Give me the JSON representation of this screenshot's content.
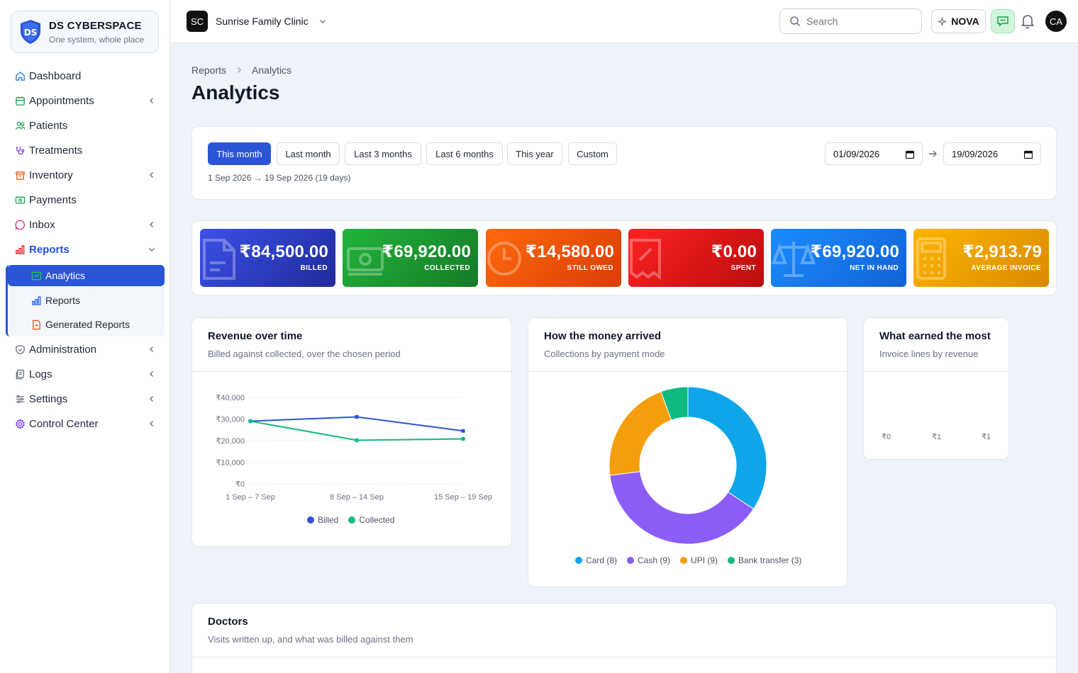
{
  "brand": {
    "name": "DS CYBERSPACE",
    "tagline": "One system, whole place"
  },
  "nav": {
    "items": [
      {
        "label": "Dashboard",
        "icon": "home-icon"
      },
      {
        "label": "Appointments",
        "icon": "calendar-icon"
      },
      {
        "label": "Patients",
        "icon": "users-icon"
      },
      {
        "label": "Treatments",
        "icon": "stethoscope-icon"
      },
      {
        "label": "Inventory",
        "icon": "box-icon"
      },
      {
        "label": "Payments",
        "icon": "money-icon"
      },
      {
        "label": "Inbox",
        "icon": "whatsapp-icon"
      },
      {
        "label": "Reports",
        "icon": "bar-chart-icon"
      },
      {
        "label": "Administration",
        "icon": "shield-icon"
      },
      {
        "label": "Logs",
        "icon": "document-stack-icon"
      },
      {
        "label": "Settings",
        "icon": "sliders-icon"
      },
      {
        "label": "Control Center",
        "icon": "gear-icon"
      }
    ],
    "reports_sub": [
      {
        "label": "Analytics",
        "icon": "analytics-icon"
      },
      {
        "label": "Reports",
        "icon": "bar-chart-icon"
      },
      {
        "label": "Generated Reports",
        "icon": "file-icon"
      }
    ]
  },
  "topbar": {
    "clinic_initials": "SC",
    "clinic_name": "Sunrise Family Clinic",
    "search_placeholder": "Search",
    "nova_label": "NOVA",
    "user_initials": "CA"
  },
  "breadcrumb": {
    "parent": "Reports",
    "current": "Analytics"
  },
  "page": {
    "title": "Analytics"
  },
  "filters": {
    "pills": [
      "This month",
      "Last month",
      "Last 3 months",
      "Last 6 months",
      "This year",
      "Custom"
    ],
    "selected": "This month",
    "range_text": "1 Sep 2026 → 19 Sep 2026 (19 days)",
    "from_date": "01/09/2026",
    "to_date": "19/09/2026"
  },
  "kpis": [
    {
      "value": "₹84,500.00",
      "label": "BILLED",
      "color_from": "#3c51e8",
      "color_to": "#1e2a9a",
      "icon": "document-icon"
    },
    {
      "value": "₹69,920.00",
      "label": "COLLECTED",
      "color_from": "#22b53c",
      "color_to": "#157a26",
      "icon": "cash-icon"
    },
    {
      "value": "₹14,580.00",
      "label": "STILL OWED",
      "color_from": "#ff6a0d",
      "color_to": "#d93d05",
      "icon": "clock-icon"
    },
    {
      "value": "₹0.00",
      "label": "SPENT",
      "color_from": "#ff2222",
      "color_to": "#b80d0d",
      "icon": "receipt-icon"
    },
    {
      "value": "₹69,920.00",
      "label": "NET IN HAND",
      "color_from": "#1a8cff",
      "color_to": "#1262d6",
      "icon": "scale-icon"
    },
    {
      "value": "₹2,913.79",
      "label": "AVERAGE INVOICE",
      "color_from": "#ffb400",
      "color_to": "#d98a00",
      "icon": "calculator-icon"
    }
  ],
  "cards": {
    "revenue": {
      "title": "Revenue over time",
      "subtitle": "Billed against collected, over the chosen period"
    },
    "money": {
      "title": "How the money arrived",
      "subtitle": "Collections by payment mode"
    },
    "earned": {
      "title": "What earned the most",
      "subtitle": "Invoice lines by revenue"
    },
    "doctors": {
      "title": "Doctors",
      "subtitle": "Visits written up, and what was billed against them"
    }
  },
  "chart_data": [
    {
      "type": "line",
      "categories": [
        "1 Sep – 7 Sep",
        "8 Sep – 14 Sep",
        "15 Sep – 19 Sep"
      ],
      "series": [
        {
          "name": "Billed",
          "values": [
            29000,
            31000,
            24500
          ],
          "color": "#2b55d6"
        },
        {
          "name": "Collected",
          "values": [
            29000,
            20200,
            20800
          ],
          "color": "#12b886"
        }
      ],
      "yticks": [
        "₹40,000",
        "₹30,000",
        "₹20,000",
        "₹10,000",
        "₹0"
      ],
      "ylim": [
        0,
        40000
      ],
      "legend": "bottom"
    },
    {
      "type": "pie",
      "slices": [
        {
          "label": "Card (8)",
          "value": 8,
          "color": "#0ea5e9"
        },
        {
          "label": "Cash (9)",
          "value": 9,
          "color": "#8b5cf6"
        },
        {
          "label": "UPI (9)",
          "value": 5,
          "color": "#f59e0b"
        },
        {
          "label": "Bank transfer (3)",
          "value": 1.3,
          "color": "#10b981"
        }
      ],
      "legend": "bottom"
    },
    {
      "type": "bar",
      "xticks": [
        "₹0",
        "₹1",
        "₹1"
      ],
      "values": []
    }
  ]
}
